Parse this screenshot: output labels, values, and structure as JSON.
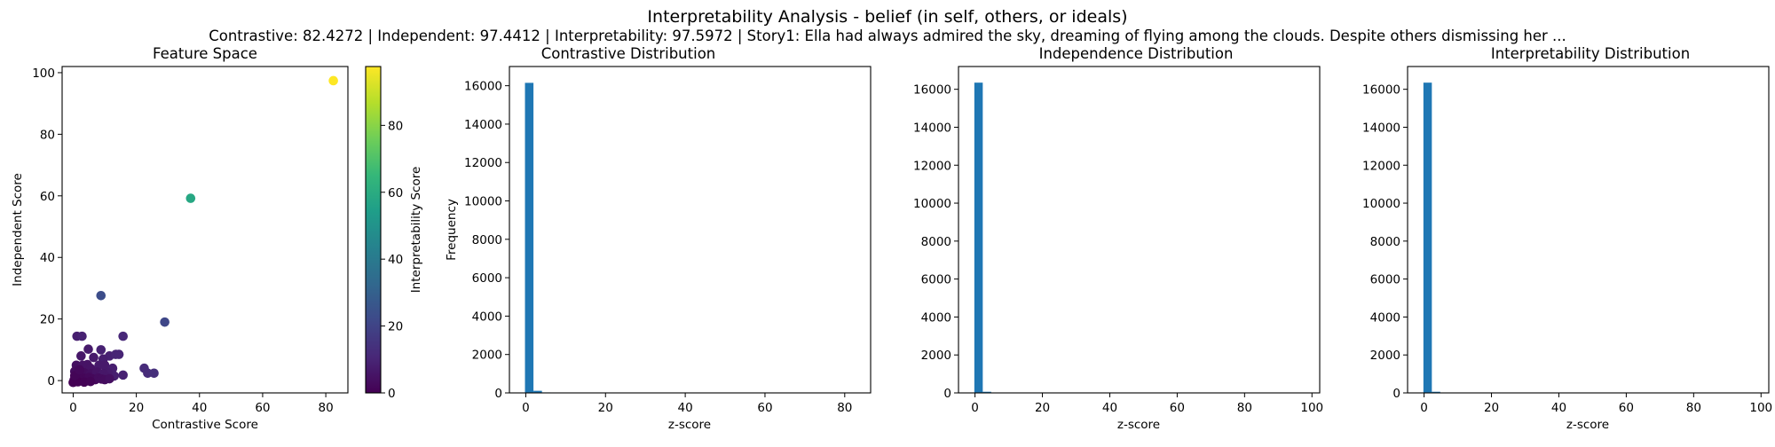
{
  "figure": {
    "title": "Interpretability Analysis - belief (in self, others, or ideals)",
    "subtitle": "Contrastive: 82.4272 | Independent: 97.4412 | Interpretability: 97.5972 | Story1: Ella had always admired the sky, dreaming of flying among the clouds. Despite others dismissing her ..."
  },
  "chart_data": [
    {
      "type": "scatter",
      "title": "Feature Space",
      "xlabel": "Contrastive Score",
      "ylabel": "Independent Score",
      "xlim": [
        -3.5,
        87
      ],
      "ylim": [
        -4,
        102
      ],
      "xticks": [
        0,
        20,
        40,
        60,
        80
      ],
      "yticks": [
        0,
        20,
        40,
        60,
        80,
        100
      ],
      "grid": false,
      "colorbar": {
        "label": "Interpretability Score",
        "range": [
          0,
          97.6
        ],
        "ticks": [
          0,
          20,
          40,
          60,
          80
        ],
        "colormap": "viridis"
      },
      "points": [
        {
          "x": 82.4,
          "y": 97.4,
          "c": 97.6
        },
        {
          "x": 37.2,
          "y": 59.2,
          "c": 58
        },
        {
          "x": 8.8,
          "y": 27.6,
          "c": 23
        },
        {
          "x": 29.0,
          "y": 19.0,
          "c": 21
        },
        {
          "x": 1.2,
          "y": 14.4,
          "c": 8
        },
        {
          "x": 2.8,
          "y": 14.4,
          "c": 9
        },
        {
          "x": 15.8,
          "y": 14.4,
          "c": 11
        },
        {
          "x": 4.8,
          "y": 10.2,
          "c": 7
        },
        {
          "x": 8.8,
          "y": 10.0,
          "c": 9
        },
        {
          "x": 2.5,
          "y": 8.0,
          "c": 6
        },
        {
          "x": 11.5,
          "y": 8.0,
          "c": 9
        },
        {
          "x": 13.5,
          "y": 8.5,
          "c": 10
        },
        {
          "x": 14.5,
          "y": 8.5,
          "c": 10
        },
        {
          "x": 6.5,
          "y": 7.5,
          "c": 7
        },
        {
          "x": 9.5,
          "y": 7.0,
          "c": 8
        },
        {
          "x": 1.0,
          "y": 5.0,
          "c": 4
        },
        {
          "x": 3.0,
          "y": 5.0,
          "c": 5
        },
        {
          "x": 4.5,
          "y": 5.2,
          "c": 5
        },
        {
          "x": 8.2,
          "y": 5.0,
          "c": 7
        },
        {
          "x": 10.0,
          "y": 5.0,
          "c": 7
        },
        {
          "x": 5.5,
          "y": 4.0,
          "c": 5
        },
        {
          "x": 12.5,
          "y": 4.0,
          "c": 8
        },
        {
          "x": 22.5,
          "y": 4.0,
          "c": 12
        },
        {
          "x": 23.6,
          "y": 2.4,
          "c": 12
        },
        {
          "x": 25.6,
          "y": 2.4,
          "c": 13
        },
        {
          "x": 15.8,
          "y": 1.8,
          "c": 9
        },
        {
          "x": 13.0,
          "y": 1.5,
          "c": 8
        },
        {
          "x": 11.0,
          "y": 2.5,
          "c": 7
        },
        {
          "x": 0.5,
          "y": 3.0,
          "c": 3
        },
        {
          "x": 1.5,
          "y": 2.0,
          "c": 2
        },
        {
          "x": 2.5,
          "y": 1.5,
          "c": 2
        },
        {
          "x": 3.5,
          "y": 2.5,
          "c": 3
        },
        {
          "x": 4.5,
          "y": 1.8,
          "c": 3
        },
        {
          "x": 5.5,
          "y": 2.2,
          "c": 4
        },
        {
          "x": 6.5,
          "y": 1.5,
          "c": 4
        },
        {
          "x": 7.5,
          "y": 2.8,
          "c": 5
        },
        {
          "x": 8.5,
          "y": 1.7,
          "c": 5
        },
        {
          "x": 9.5,
          "y": 2.3,
          "c": 6
        },
        {
          "x": 10.5,
          "y": 1.2,
          "c": 6
        },
        {
          "x": 0.3,
          "y": 0.2,
          "c": 0.5
        },
        {
          "x": 1.0,
          "y": 0.8,
          "c": 1
        },
        {
          "x": 2.0,
          "y": 0.5,
          "c": 1
        },
        {
          "x": 3.0,
          "y": 0.9,
          "c": 1.5
        },
        {
          "x": 4.0,
          "y": 0.4,
          "c": 1.5
        },
        {
          "x": 5.0,
          "y": 1.0,
          "c": 2
        },
        {
          "x": 6.0,
          "y": 0.6,
          "c": 2
        },
        {
          "x": 7.0,
          "y": 0.3,
          "c": 2
        },
        {
          "x": 8.0,
          "y": 0.8,
          "c": 3
        },
        {
          "x": 9.0,
          "y": 0.5,
          "c": 3
        },
        {
          "x": 10.0,
          "y": 0.3,
          "c": 3
        },
        {
          "x": 11.5,
          "y": 0.6,
          "c": 4
        },
        {
          "x": 0.0,
          "y": -0.6,
          "c": 0
        },
        {
          "x": 1.5,
          "y": -0.4,
          "c": 0
        },
        {
          "x": 3.5,
          "y": -0.5,
          "c": 0.5
        },
        {
          "x": 5.5,
          "y": -0.3,
          "c": 1
        },
        {
          "x": 0.5,
          "y": 1.6,
          "c": 1
        },
        {
          "x": 2.0,
          "y": 3.5,
          "c": 2
        }
      ]
    },
    {
      "type": "bar",
      "title": "Contrastive Distribution",
      "xlabel": "z-score",
      "ylabel": "Frequency",
      "xlim": [
        -4.1,
        86.5
      ],
      "ylim": [
        0,
        17000
      ],
      "xticks": [
        0,
        20,
        40,
        60,
        80
      ],
      "yticks": [
        0,
        2000,
        4000,
        6000,
        8000,
        10000,
        12000,
        14000,
        16000
      ],
      "grid": false,
      "bins": [
        {
          "x0": -0.2,
          "x1": 1.93,
          "count": 16150
        },
        {
          "x0": 1.93,
          "x1": 4.06,
          "count": 110
        },
        {
          "x0": 4.06,
          "x1": 6.19,
          "count": 25
        }
      ]
    },
    {
      "type": "bar",
      "title": "Independence Distribution",
      "xlabel": "z-score",
      "ylabel": "",
      "xlim": [
        -4.9,
        102.3
      ],
      "ylim": [
        0,
        17200
      ],
      "xticks": [
        0,
        20,
        40,
        60,
        80,
        100
      ],
      "yticks": [
        0,
        2000,
        4000,
        6000,
        8000,
        10000,
        12000,
        14000,
        16000
      ],
      "grid": false,
      "bins": [
        {
          "x0": -0.2,
          "x1": 2.3,
          "count": 16350
        },
        {
          "x0": 2.3,
          "x1": 4.8,
          "count": 60
        },
        {
          "x0": 4.8,
          "x1": 7.3,
          "count": 15
        }
      ]
    },
    {
      "type": "bar",
      "title": "Interpretability Distribution",
      "xlabel": "z-score",
      "ylabel": "",
      "xlim": [
        -4.9,
        102.3
      ],
      "ylim": [
        0,
        17200
      ],
      "xticks": [
        0,
        20,
        40,
        60,
        80,
        100
      ],
      "yticks": [
        0,
        2000,
        4000,
        6000,
        8000,
        10000,
        12000,
        14000,
        16000
      ],
      "grid": false,
      "bins": [
        {
          "x0": -0.2,
          "x1": 2.3,
          "count": 16350
        },
        {
          "x0": 2.3,
          "x1": 4.8,
          "count": 60
        },
        {
          "x0": 4.8,
          "x1": 7.3,
          "count": 15
        }
      ]
    }
  ],
  "colors": {
    "bar": "#1f77b4",
    "viridis": [
      "#440154",
      "#482878",
      "#3e4989",
      "#31688e",
      "#26828e",
      "#1f9e89",
      "#35b779",
      "#6ece58",
      "#b5de2b",
      "#fde725"
    ]
  }
}
